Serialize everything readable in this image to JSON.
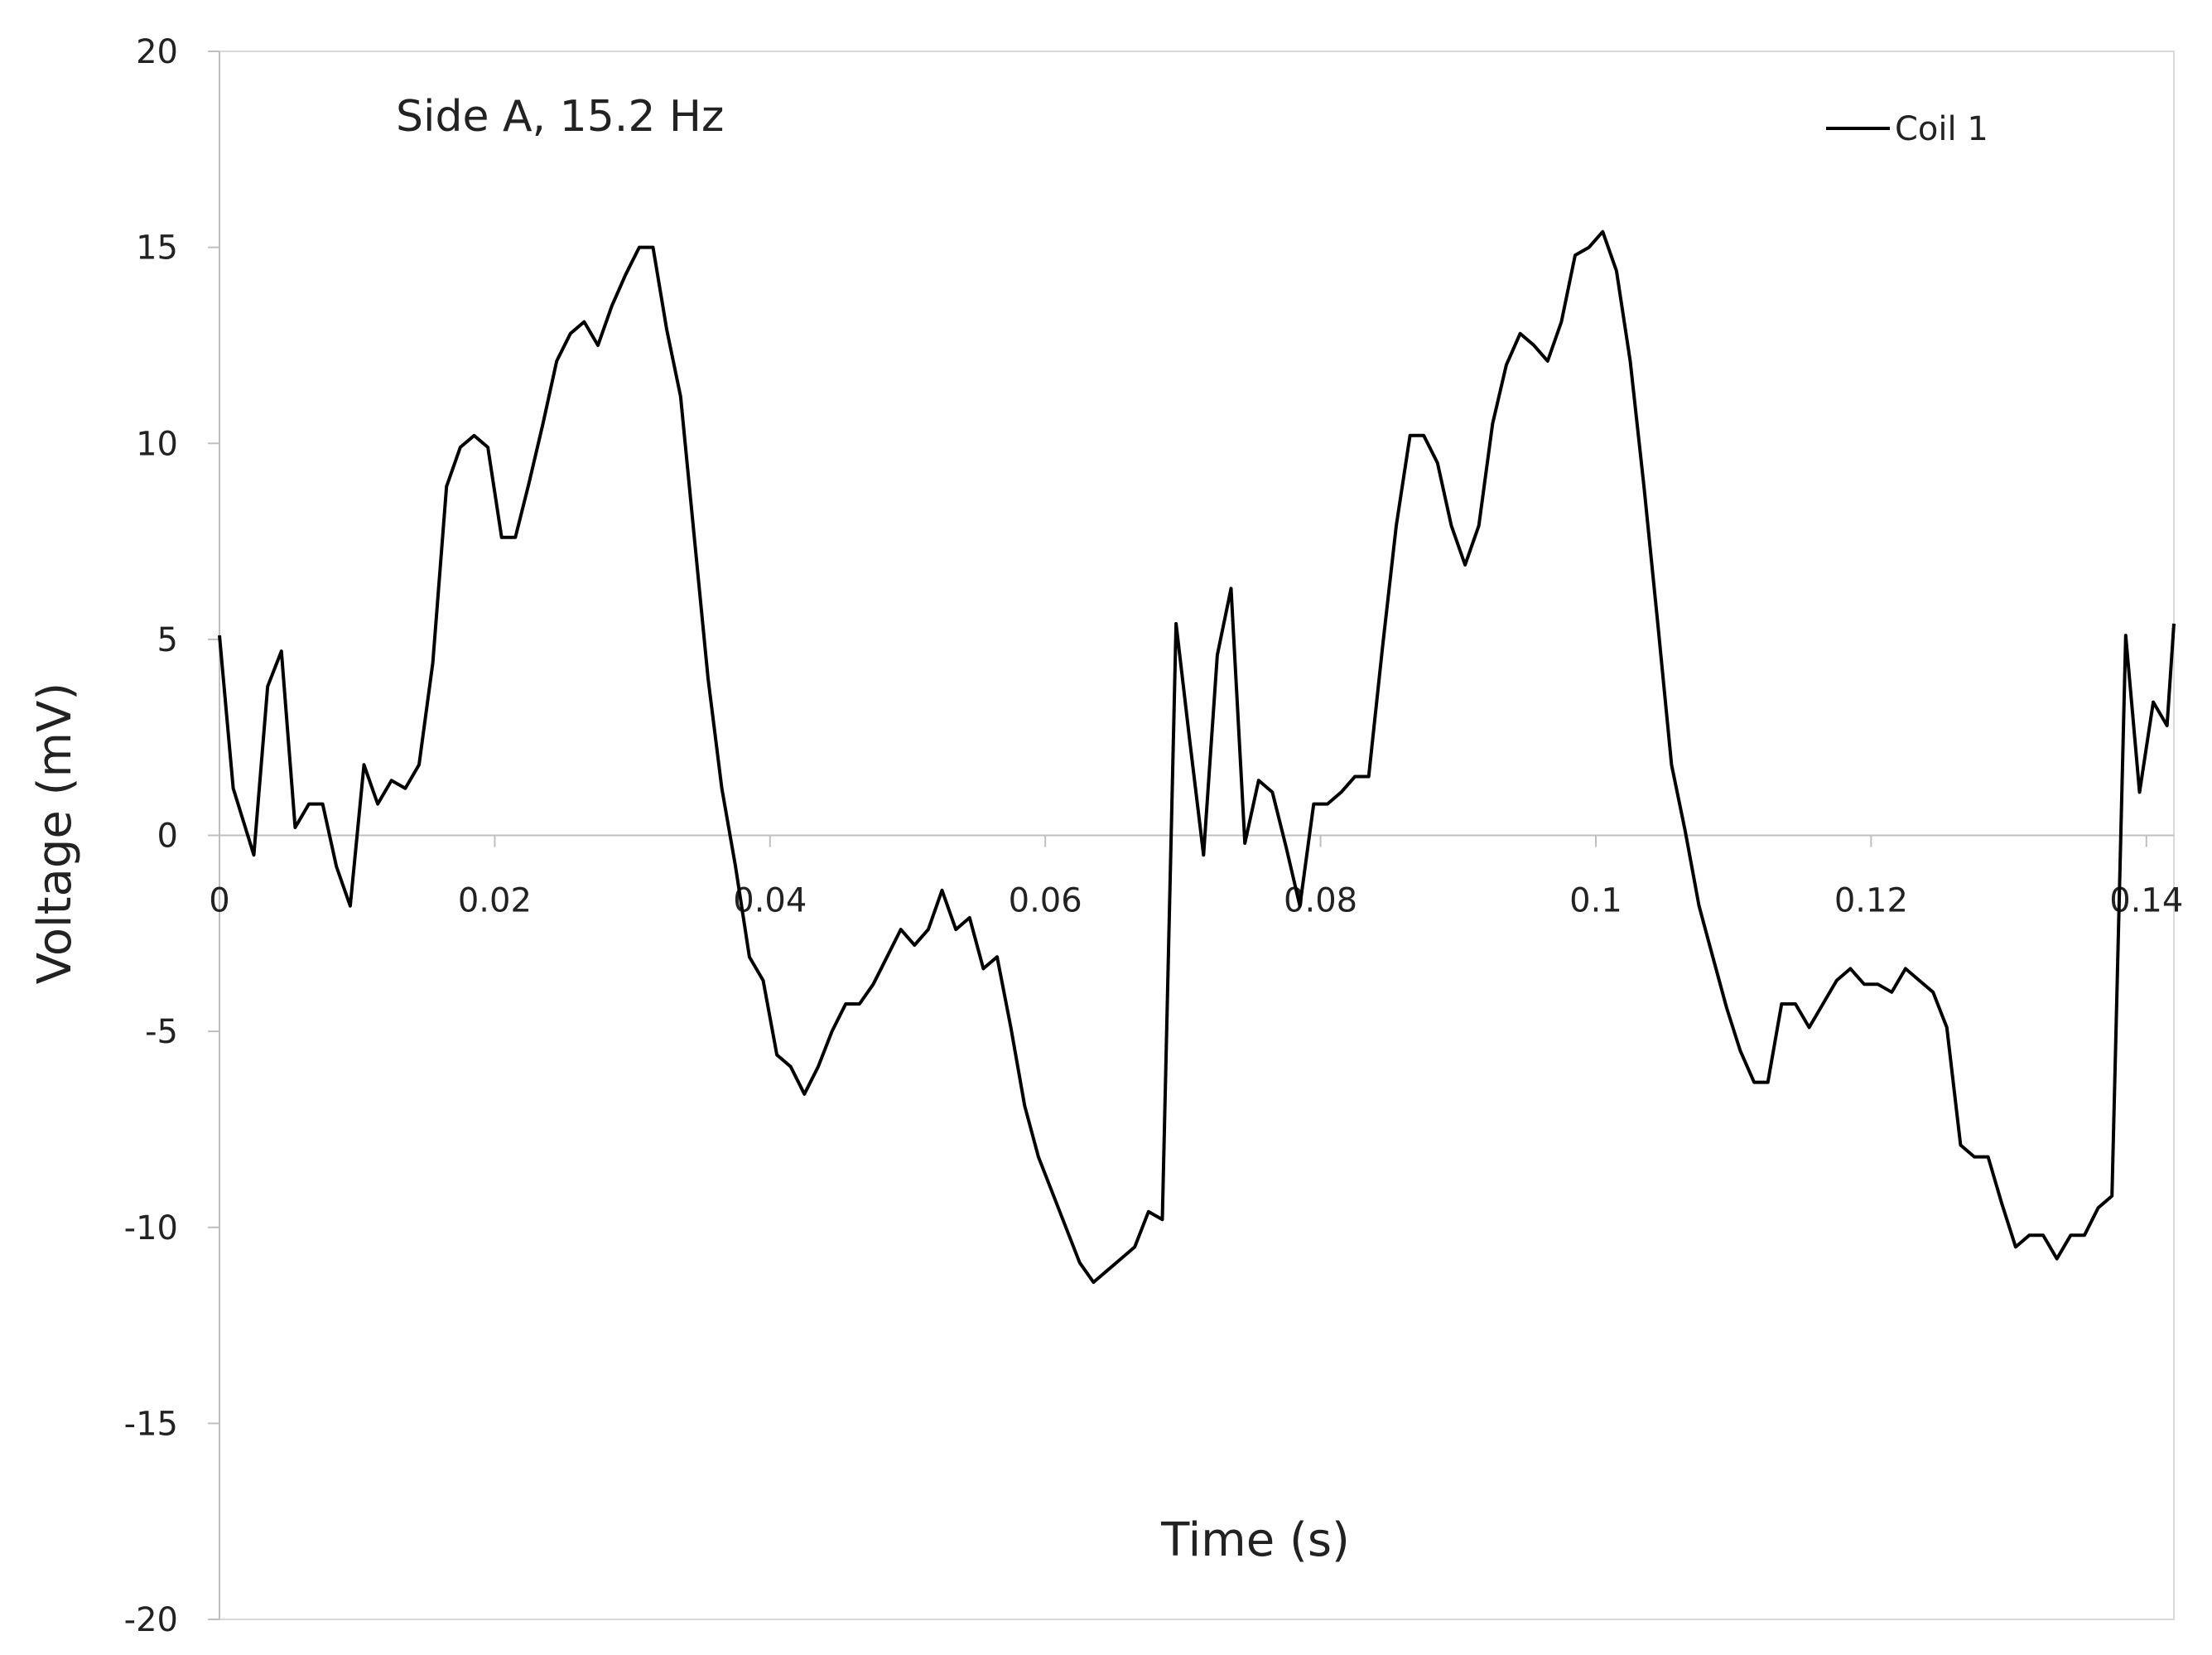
{
  "chart_data": {
    "type": "line",
    "title": "Side A, 15.2 Hz",
    "xlabel": "Time (s)",
    "ylabel": "Voltage (mV)",
    "xlim": [
      0,
      0.142
    ],
    "ylim": [
      -20,
      20
    ],
    "x_ticks": [
      0,
      0.02,
      0.04,
      0.06,
      0.08,
      0.1,
      0.12,
      0.14
    ],
    "x_tick_labels": [
      "0",
      "0.02",
      "0.04",
      "0.06",
      "0.08",
      "0.1",
      "0.12",
      "0.14"
    ],
    "y_ticks": [
      20,
      15,
      10,
      5,
      0,
      -5,
      -10,
      -15,
      -20
    ],
    "y_tick_labels": [
      "20",
      "15",
      "10",
      "5",
      "0",
      "-5",
      "-10",
      "-15",
      "-20"
    ],
    "grid": false,
    "legend_position": "top-right",
    "series": [
      {
        "name": "Coil 1",
        "color": "#000000",
        "x": [
          0,
          0.001,
          0.0025,
          0.0035,
          0.0045,
          0.0055,
          0.0065,
          0.0075,
          0.0085,
          0.0095,
          0.0105,
          0.0115,
          0.0125,
          0.0135,
          0.0145,
          0.0155,
          0.0165,
          0.0175,
          0.0185,
          0.0195,
          0.0205,
          0.0215,
          0.0225,
          0.0235,
          0.0245,
          0.0255,
          0.0265,
          0.0275,
          0.0285,
          0.0295,
          0.0305,
          0.0315,
          0.0325,
          0.0335,
          0.0345,
          0.0355,
          0.0365,
          0.0375,
          0.0385,
          0.0395,
          0.0405,
          0.0415,
          0.0425,
          0.0435,
          0.0445,
          0.0455,
          0.0465,
          0.0475,
          0.0485,
          0.0495,
          0.0505,
          0.0515,
          0.0525,
          0.0535,
          0.0545,
          0.0555,
          0.0565,
          0.0575,
          0.0585,
          0.0595,
          0.0605,
          0.0615,
          0.0625,
          0.0635,
          0.0645,
          0.0655,
          0.0665,
          0.0675,
          0.0685,
          0.0695,
          0.0705,
          0.0715,
          0.0725,
          0.0735,
          0.0745,
          0.0755,
          0.0765,
          0.0775,
          0.0785,
          0.0795,
          0.0805,
          0.0815,
          0.0825,
          0.0835,
          0.0845,
          0.0855,
          0.0865,
          0.0875,
          0.0885,
          0.0895,
          0.0905,
          0.0915,
          0.0925,
          0.0935,
          0.0945,
          0.0955,
          0.0965,
          0.0975,
          0.0985,
          0.0995,
          0.1005,
          0.1015,
          0.1025,
          0.1035,
          0.1045,
          0.1055,
          0.1065,
          0.1075,
          0.1085,
          0.1095,
          0.1105,
          0.1115,
          0.1125,
          0.1135,
          0.1145,
          0.1155,
          0.1165,
          0.1175,
          0.1185,
          0.1195,
          0.1205,
          0.1215,
          0.1225,
          0.1235,
          0.1245,
          0.1255,
          0.1265,
          0.1275,
          0.1285,
          0.1295,
          0.1305,
          0.1315,
          0.1325,
          0.1335,
          0.1345,
          0.1355,
          0.1365,
          0.1375,
          0.1385,
          0.1395,
          0.1405,
          0.1415,
          0.142
        ],
        "y": [
          5.1,
          1.2,
          -0.5,
          3.8,
          4.7,
          0.2,
          0.8,
          0.8,
          -0.8,
          -1.8,
          1.8,
          0.8,
          1.4,
          1.2,
          1.8,
          4.4,
          8.9,
          9.9,
          10.2,
          9.9,
          7.6,
          7.6,
          9.0,
          10.5,
          12.1,
          12.8,
          13.1,
          12.5,
          13.5,
          14.3,
          15.0,
          15.0,
          12.9,
          11.2,
          7.6,
          4.0,
          1.2,
          -0.8,
          -3.1,
          -3.7,
          -5.6,
          -5.9,
          -6.6,
          -5.9,
          -5.0,
          -4.3,
          -4.3,
          -3.8,
          -3.1,
          -2.4,
          -2.8,
          -2.4,
          -1.4,
          -2.4,
          -2.1,
          -3.4,
          -3.1,
          -4.9,
          -6.9,
          -8.2,
          -9.1,
          -10.0,
          -10.9,
          -11.4,
          -11.1,
          -10.8,
          -10.5,
          -9.6,
          -9.8,
          5.4,
          2.4,
          -0.5,
          4.6,
          6.3,
          -0.2,
          1.4,
          1.1,
          -0.3,
          -1.8,
          0.8,
          0.8,
          1.1,
          1.5,
          1.5,
          4.8,
          7.9,
          10.2,
          10.2,
          9.5,
          7.9,
          6.9,
          7.9,
          10.5,
          12.0,
          12.8,
          12.5,
          12.1,
          13.1,
          14.8,
          15.0,
          15.4,
          14.4,
          12.1,
          8.9,
          5.4,
          1.8,
          0.1,
          -1.8,
          -3.1,
          -4.4,
          -5.5,
          -6.3,
          -6.3,
          -4.3,
          -4.3,
          -4.9,
          -4.3,
          -3.7,
          -3.4,
          -3.8,
          -3.8,
          -4.0,
          -3.4,
          -3.7,
          -4.0,
          -4.9,
          -7.9,
          -8.2,
          -8.2,
          -9.4,
          -10.5,
          -10.2,
          -10.2,
          -10.8,
          -10.2,
          -10.2,
          -9.5,
          -9.2,
          5.1,
          1.1,
          3.4,
          2.8,
          5.4
        ]
      }
    ]
  }
}
